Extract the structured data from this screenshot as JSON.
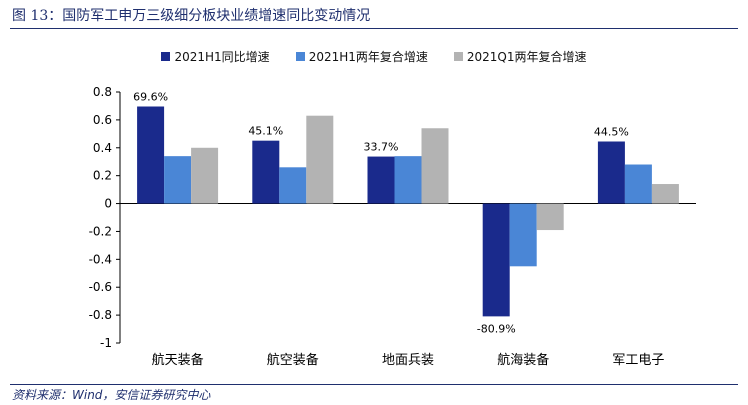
{
  "figure": {
    "title": "图 13：国防军工申万三级细分板块业绩增速同比变动情况",
    "source": "资料来源：Wind，安信证券研究中心"
  },
  "colors": {
    "series1": "#1a2a8c",
    "series2": "#4a86d6",
    "series3": "#b3b3b3",
    "axis": "#000000",
    "accent": "#1f2f6e"
  },
  "chart_data": {
    "type": "bar",
    "title": "",
    "xlabel": "",
    "ylabel": "",
    "ylim": [
      -1,
      0.8
    ],
    "yticks": [
      0.8,
      0.6,
      0.4,
      0.2,
      0,
      -0.2,
      -0.4,
      -0.6,
      -0.8,
      -1
    ],
    "ytick_labels": [
      "0.8",
      "0.6",
      "0.4",
      "0.2",
      "0",
      "-0.2",
      "-0.4",
      "-0.6",
      "-0.8",
      "-1"
    ],
    "grid": false,
    "legend_position": "top-center",
    "categories": [
      "航天装备",
      "航空装备",
      "地面兵装",
      "航海装备",
      "军工电子"
    ],
    "series": [
      {
        "name": "2021H1同比增速",
        "values": [
          0.696,
          0.451,
          0.337,
          -0.809,
          0.445
        ],
        "labels": [
          "69.6%",
          "45.1%",
          "33.7%",
          "-80.9%",
          "44.5%"
        ]
      },
      {
        "name": "2021H1两年复合增速",
        "values": [
          0.34,
          0.26,
          0.34,
          -0.45,
          0.28
        ]
      },
      {
        "name": "2021Q1两年复合增速",
        "values": [
          0.4,
          0.63,
          0.54,
          -0.19,
          0.14
        ]
      }
    ]
  }
}
